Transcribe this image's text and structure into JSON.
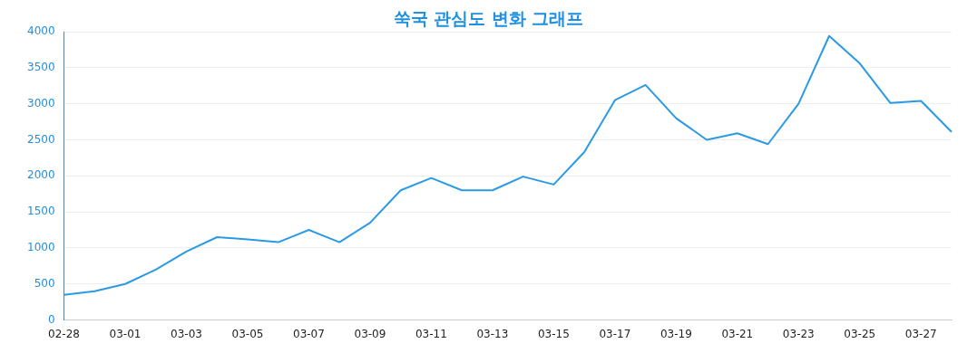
{
  "chart_data": {
    "type": "line",
    "title": "쑥국 관심도 변화 그래프",
    "categories": [
      "02-28",
      null,
      "03-01",
      null,
      "03-03",
      null,
      "03-05",
      null,
      "03-07",
      null,
      "03-09",
      null,
      "03-11",
      null,
      "03-13",
      null,
      "03-15",
      null,
      "03-17",
      null,
      "03-19",
      null,
      "03-21",
      null,
      "03-23",
      null,
      "03-25",
      null,
      "03-27",
      null
    ],
    "series": [
      {
        "color": "#2b9ae4",
        "values": [
          350,
          400,
          500,
          700,
          950,
          1150,
          1120,
          1080,
          1250,
          1080,
          1350,
          1800,
          1970,
          1800,
          1800,
          1990,
          1880,
          2330,
          3050,
          3260,
          2800,
          2500,
          2590,
          2440,
          3000,
          3940,
          3560,
          3010,
          3040,
          2610
        ]
      }
    ],
    "ylim": [
      0,
      4000
    ],
    "yticks": [
      0,
      500,
      1000,
      1500,
      2000,
      2500,
      3000,
      3500,
      4000
    ],
    "grid": "y",
    "legend": false,
    "marker": "none",
    "line_style": "solid"
  }
}
